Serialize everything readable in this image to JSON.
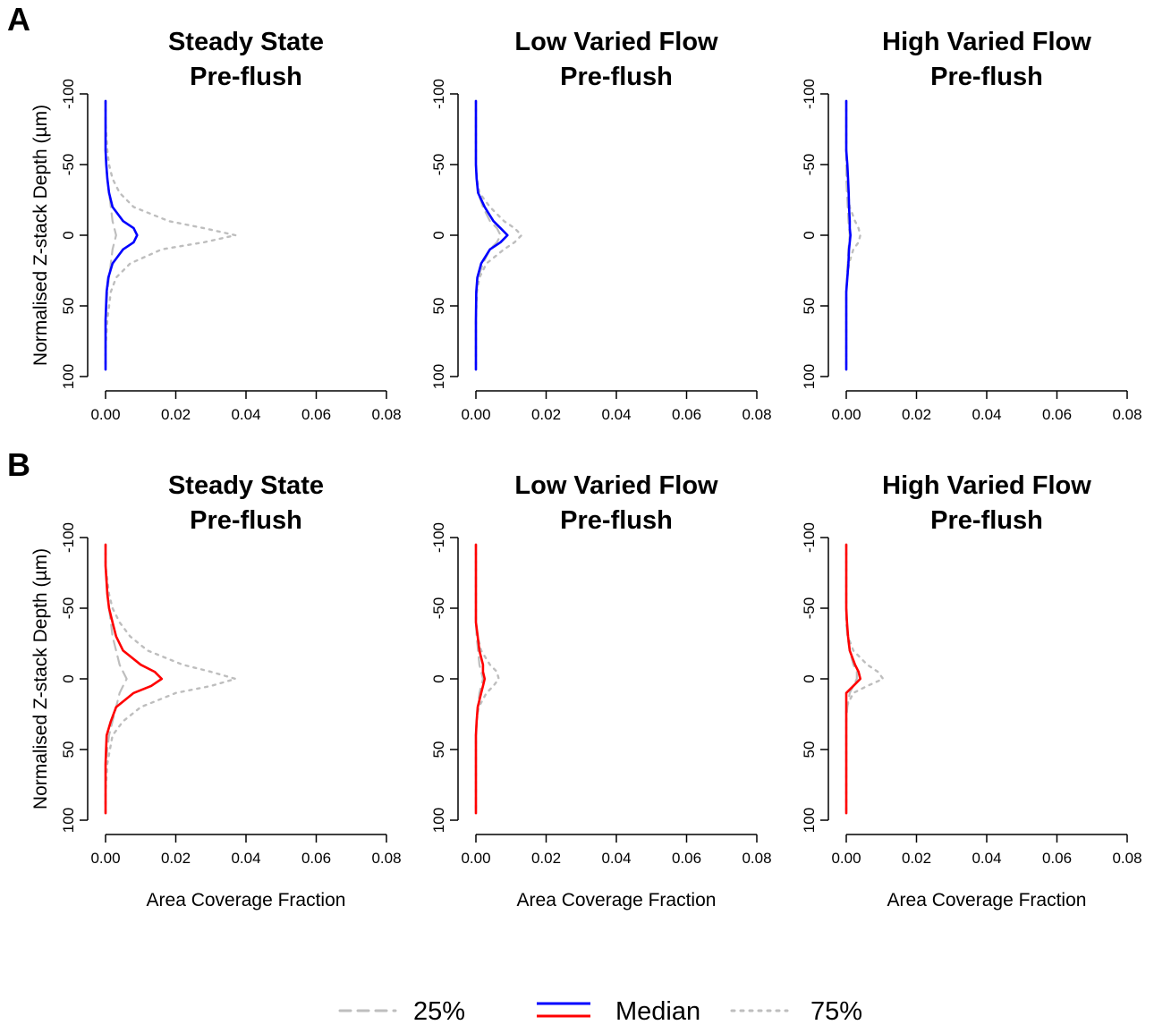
{
  "figure": {
    "panel_labels": [
      "A",
      "B"
    ]
  },
  "chart_data": [
    {
      "type": "line",
      "panel": "A",
      "title_line1": "Steady State",
      "title_line2": "Pre-flush",
      "xlabel": "",
      "ylabel": "Normalised Z-stack Depth (µm)",
      "xlim": [
        0,
        0.08
      ],
      "ylim": [
        -100,
        100
      ],
      "x_ticks": [
        "0.00",
        "0.02",
        "0.04",
        "0.06",
        "0.08"
      ],
      "y_ticks": [
        "-100",
        "-50",
        "0",
        "50",
        "100"
      ],
      "median_color": "#0000ff",
      "quartile_color": "#bebebe",
      "y": [
        -95,
        -80,
        -60,
        -50,
        -40,
        -30,
        -20,
        -10,
        -5,
        0,
        5,
        10,
        20,
        30,
        40,
        60,
        80,
        95
      ],
      "series": [
        {
          "stat": "25%",
          "values": [
            0,
            0,
            0,
            0.0002,
            0.0005,
            0.001,
            0.0015,
            0.002,
            0.0025,
            0.003,
            0.0025,
            0.002,
            0.0015,
            0.001,
            0.0005,
            0,
            0,
            0
          ]
        },
        {
          "stat": "Median",
          "values": [
            0,
            0,
            0,
            0.0002,
            0.0005,
            0.001,
            0.002,
            0.005,
            0.008,
            0.009,
            0.008,
            0.005,
            0.002,
            0.0008,
            0.0003,
            0,
            0,
            0
          ]
        },
        {
          "stat": "75%",
          "values": [
            0,
            0,
            0.0005,
            0.001,
            0.002,
            0.004,
            0.008,
            0.018,
            0.028,
            0.037,
            0.028,
            0.016,
            0.007,
            0.003,
            0.0015,
            0.0005,
            0,
            0
          ]
        }
      ]
    },
    {
      "type": "line",
      "panel": "A",
      "title_line1": "Low Varied Flow",
      "title_line2": "Pre-flush",
      "xlabel": "",
      "ylabel": "",
      "xlim": [
        0,
        0.08
      ],
      "ylim": [
        -100,
        100
      ],
      "x_ticks": [
        "0.00",
        "0.02",
        "0.04",
        "0.06",
        "0.08"
      ],
      "y_ticks": [
        "-100",
        "-50",
        "0",
        "50",
        "100"
      ],
      "median_color": "#0000ff",
      "quartile_color": "#bebebe",
      "y": [
        -95,
        -80,
        -60,
        -50,
        -40,
        -30,
        -20,
        -10,
        -5,
        0,
        5,
        10,
        20,
        30,
        40,
        60,
        80,
        95
      ],
      "series": [
        {
          "stat": "25%",
          "values": [
            0,
            0,
            0,
            0,
            0.0002,
            0.0006,
            0.002,
            0.004,
            0.006,
            0.007,
            0.006,
            0.004,
            0.002,
            0.0006,
            0.0002,
            0,
            0,
            0
          ]
        },
        {
          "stat": "Median",
          "values": [
            0,
            0,
            0,
            0,
            0.0002,
            0.0006,
            0.0025,
            0.005,
            0.007,
            0.009,
            0.007,
            0.004,
            0.0015,
            0.0004,
            0.0001,
            0,
            0,
            0
          ]
        },
        {
          "stat": "75%",
          "values": [
            0,
            0,
            0,
            0,
            0.0003,
            0.001,
            0.004,
            0.008,
            0.011,
            0.013,
            0.011,
            0.008,
            0.003,
            0.001,
            0.0003,
            0,
            0,
            0
          ]
        }
      ]
    },
    {
      "type": "line",
      "panel": "A",
      "title_line1": "High Varied Flow",
      "title_line2": "Pre-flush",
      "xlabel": "",
      "ylabel": "",
      "xlim": [
        0,
        0.08
      ],
      "ylim": [
        -100,
        100
      ],
      "x_ticks": [
        "0.00",
        "0.02",
        "0.04",
        "0.06",
        "0.08"
      ],
      "y_ticks": [
        "-100",
        "-50",
        "0",
        "50",
        "100"
      ],
      "median_color": "#0000ff",
      "quartile_color": "#bebebe",
      "y": [
        -95,
        -80,
        -60,
        -50,
        -40,
        -30,
        -20,
        -10,
        -5,
        0,
        5,
        10,
        20,
        30,
        40,
        60,
        80,
        95
      ],
      "series": [
        {
          "stat": "25%",
          "values": [
            0,
            0,
            0,
            0,
            0,
            0.0002,
            0.0004,
            0.0006,
            0.0008,
            0.001,
            0.0008,
            0.0006,
            0.0004,
            0.0002,
            0,
            0,
            0,
            0
          ]
        },
        {
          "stat": "Median",
          "values": [
            0,
            0,
            0,
            0.0003,
            0.0005,
            0.0007,
            0.0008,
            0.001,
            0.001,
            0.0012,
            0.001,
            0.0008,
            0.0006,
            0.0003,
            0,
            0,
            0,
            0
          ]
        },
        {
          "stat": "75%",
          "values": [
            0,
            0,
            0,
            0,
            0.0002,
            0.0005,
            0.001,
            0.0025,
            0.0035,
            0.004,
            0.0035,
            0.002,
            0.0008,
            0.0003,
            0,
            0,
            0,
            0
          ]
        }
      ]
    },
    {
      "type": "line",
      "panel": "B",
      "title_line1": "Steady State",
      "title_line2": "Pre-flush",
      "xlabel": "Area Coverage Fraction",
      "ylabel": "Normalised Z-stack Depth (µm)",
      "xlim": [
        0,
        0.08
      ],
      "ylim": [
        -100,
        100
      ],
      "x_ticks": [
        "0.00",
        "0.02",
        "0.04",
        "0.06",
        "0.08"
      ],
      "y_ticks": [
        "-100",
        "-50",
        "0",
        "50",
        "100"
      ],
      "median_color": "#ff0000",
      "quartile_color": "#bebebe",
      "y": [
        -95,
        -80,
        -60,
        -50,
        -40,
        -30,
        -20,
        -10,
        -5,
        0,
        5,
        10,
        20,
        30,
        40,
        60,
        80,
        95
      ],
      "series": [
        {
          "stat": "25%",
          "values": [
            0,
            0,
            0.0005,
            0.001,
            0.0015,
            0.002,
            0.003,
            0.004,
            0.005,
            0.006,
            0.005,
            0.004,
            0.003,
            0.002,
            0.001,
            0,
            0,
            0
          ]
        },
        {
          "stat": "Median",
          "values": [
            0,
            0,
            0.0005,
            0.001,
            0.002,
            0.003,
            0.005,
            0.01,
            0.014,
            0.016,
            0.013,
            0.008,
            0.003,
            0.0015,
            0.0003,
            0,
            0,
            0
          ]
        },
        {
          "stat": "75%",
          "values": [
            0,
            0,
            0.001,
            0.002,
            0.004,
            0.007,
            0.012,
            0.022,
            0.03,
            0.037,
            0.03,
            0.02,
            0.01,
            0.005,
            0.002,
            0.0005,
            0,
            0
          ]
        }
      ]
    },
    {
      "type": "line",
      "panel": "B",
      "title_line1": "Low Varied Flow",
      "title_line2": "Pre-flush",
      "xlabel": "Area Coverage Fraction",
      "ylabel": "",
      "xlim": [
        0,
        0.08
      ],
      "ylim": [
        -100,
        100
      ],
      "x_ticks": [
        "0.00",
        "0.02",
        "0.04",
        "0.06",
        "0.08"
      ],
      "y_ticks": [
        "-100",
        "-50",
        "0",
        "50",
        "100"
      ],
      "median_color": "#ff0000",
      "quartile_color": "#bebebe",
      "y": [
        -95,
        -80,
        -60,
        -50,
        -40,
        -30,
        -20,
        -10,
        -5,
        0,
        5,
        10,
        20,
        30,
        40,
        60,
        80,
        95
      ],
      "series": [
        {
          "stat": "25%",
          "values": [
            0,
            0,
            0,
            0,
            0,
            0.0002,
            0.0006,
            0.001,
            0.0015,
            0.002,
            0.0015,
            0.001,
            0.0006,
            0.0002,
            0,
            0,
            0,
            0
          ]
        },
        {
          "stat": "Median",
          "values": [
            0,
            0,
            0,
            0,
            0,
            0.0005,
            0.001,
            0.002,
            0.002,
            0.0025,
            0.002,
            0.0015,
            0.0005,
            0.0002,
            0,
            0,
            0,
            0
          ]
        },
        {
          "stat": "75%",
          "values": [
            0,
            0,
            0,
            0,
            0,
            0.0005,
            0.0015,
            0.004,
            0.006,
            0.0065,
            0.005,
            0.003,
            0.0008,
            0.0002,
            0,
            0,
            0,
            0
          ]
        }
      ]
    },
    {
      "type": "line",
      "panel": "B",
      "title_line1": "High Varied Flow",
      "title_line2": "Pre-flush",
      "xlabel": "Area Coverage Fraction",
      "ylabel": "",
      "xlim": [
        0,
        0.08
      ],
      "ylim": [
        -100,
        100
      ],
      "x_ticks": [
        "0.00",
        "0.02",
        "0.04",
        "0.06",
        "0.08"
      ],
      "y_ticks": [
        "-100",
        "-50",
        "0",
        "50",
        "100"
      ],
      "median_color": "#ff0000",
      "quartile_color": "#bebebe",
      "y": [
        -95,
        -80,
        -60,
        -50,
        -40,
        -30,
        -20,
        -10,
        -5,
        0,
        5,
        10,
        20,
        30,
        40,
        60,
        80,
        95
      ],
      "series": [
        {
          "stat": "25%",
          "values": [
            0,
            0,
            0,
            0,
            0,
            0.0003,
            0.001,
            0.002,
            0.003,
            0.003,
            0.002,
            0.001,
            0.0003,
            0,
            0,
            0,
            0,
            0
          ]
        },
        {
          "stat": "Median",
          "values": [
            0,
            0,
            0,
            0,
            0.0002,
            0.0005,
            0.001,
            0.0025,
            0.0035,
            0.004,
            0.002,
            0,
            0,
            0,
            0,
            0,
            0,
            0
          ]
        },
        {
          "stat": "75%",
          "values": [
            0,
            0,
            0,
            0,
            0,
            0.0005,
            0.002,
            0.006,
            0.009,
            0.0105,
            0.006,
            0.002,
            0,
            0,
            0,
            0,
            0,
            0
          ]
        }
      ]
    }
  ],
  "legend": {
    "items": [
      {
        "label": "25%",
        "style": "dashed"
      },
      {
        "label": "Median",
        "style": "solid"
      },
      {
        "label": "75%",
        "style": "dotted"
      }
    ]
  }
}
